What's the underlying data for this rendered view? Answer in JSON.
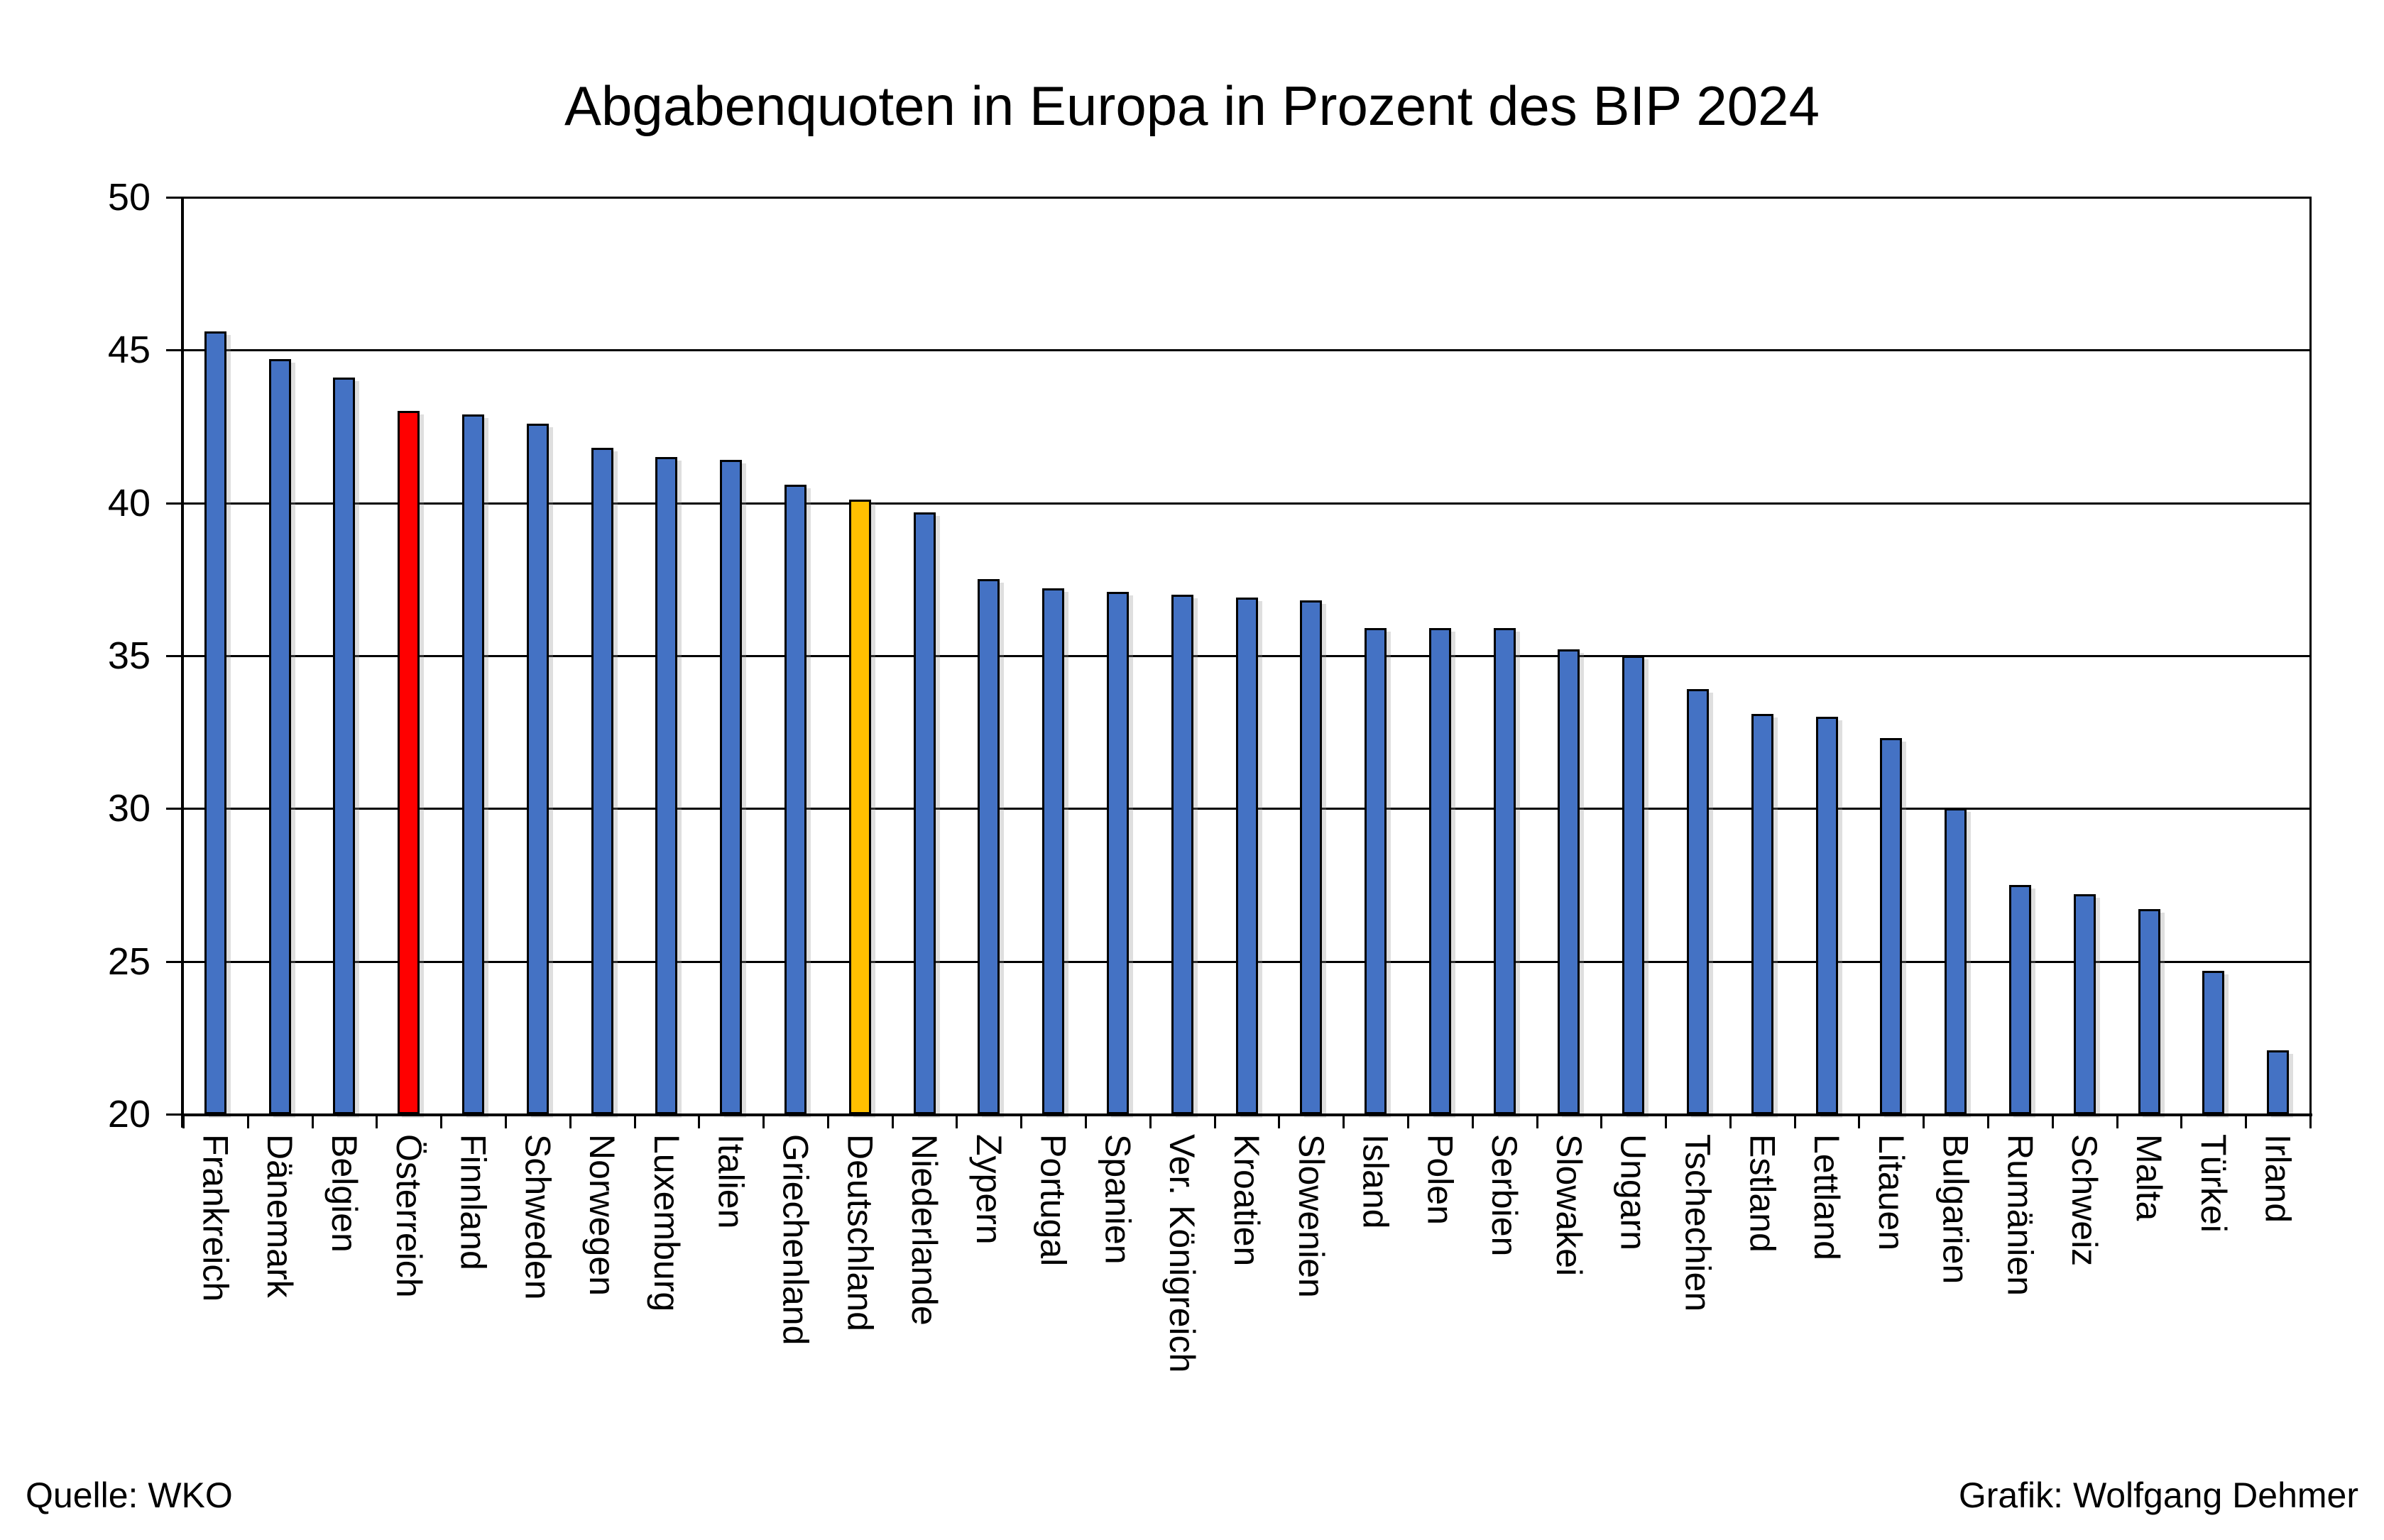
{
  "title": "Abgabenquoten in Europa in Prozent des BIP 2024",
  "source": "Quelle: WKO",
  "credit": "Grafik: Wolfgang Dehmer",
  "colors": {
    "bar_default": "#4472C4",
    "bar_border": "#000000",
    "highlight_austria": "#FF0000",
    "highlight_germany": "#FFC000",
    "grid": "#000000",
    "background": "#FFFFFF"
  },
  "chart_data": {
    "type": "bar",
    "title": "Abgabenquoten in Europa in Prozent des BIP 2024",
    "xlabel": "",
    "ylabel": "",
    "ylim": [
      20,
      50
    ],
    "yticks": [
      20,
      25,
      30,
      35,
      40,
      45,
      50
    ],
    "grid": "horizontal",
    "legend": "none",
    "categories": [
      "Frankreich",
      "Dänemark",
      "Belgien",
      "Österreich",
      "Finnland",
      "Schweden",
      "Norwegen",
      "Luxemburg",
      "Italien",
      "Griechenland",
      "Deutschland",
      "Niederlande",
      "Zypern",
      "Portugal",
      "Spanien",
      "Ver. Königreich",
      "Kroatien",
      "Slowenien",
      "Island",
      "Polen",
      "Serbien",
      "Slowakei",
      "Ungarn",
      "Tschechien",
      "Estland",
      "Lettland",
      "Litauen",
      "Bulgarien",
      "Rumänien",
      "Schweiz",
      "Malta",
      "Türkei",
      "Irland"
    ],
    "values": [
      45.6,
      44.7,
      44.1,
      43.0,
      42.9,
      42.6,
      41.8,
      41.5,
      41.4,
      40.6,
      40.1,
      39.7,
      37.5,
      37.2,
      37.1,
      37.0,
      36.9,
      36.8,
      35.9,
      35.9,
      35.9,
      35.2,
      35.0,
      33.9,
      33.1,
      33.0,
      32.3,
      30.0,
      27.5,
      27.2,
      26.7,
      24.7,
      22.1
    ],
    "bar_colors": {
      "3": "#FF0000",
      "10": "#FFC000"
    },
    "highlighted": {
      "Österreich": "#FF0000",
      "Deutschland": "#FFC000"
    }
  }
}
